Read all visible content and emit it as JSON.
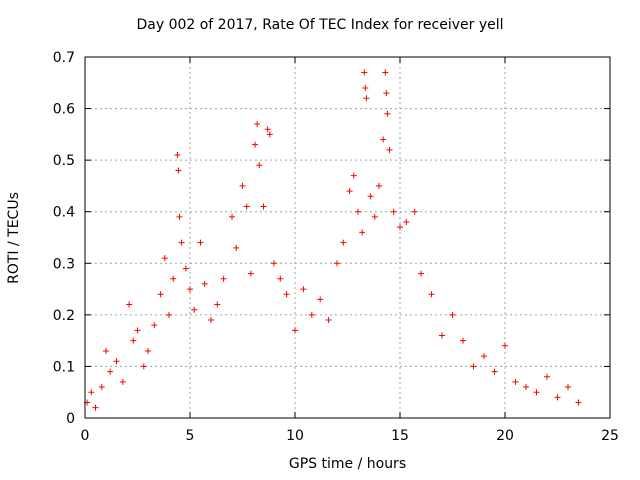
{
  "chart_data": {
    "type": "scatter",
    "title": "Day 002 of 2017, Rate Of TEC Index for receiver yell",
    "xlabel": "GPS time / hours",
    "ylabel": "ROTI / TECUs",
    "xlim": [
      0,
      25
    ],
    "ylim": [
      0,
      0.7
    ],
    "xticks": [
      0,
      5,
      10,
      15,
      20,
      25
    ],
    "yticks": [
      0,
      0.1,
      0.2,
      0.3,
      0.4,
      0.5,
      0.6,
      0.7
    ],
    "xtick_labels": [
      "0",
      "5",
      "10",
      "15",
      "20",
      "25"
    ],
    "ytick_labels": [
      "0",
      "0.1",
      "0.2",
      "0.3",
      "0.4",
      "0.5",
      "0.6",
      "0.7"
    ],
    "grid": true,
    "marker": "+",
    "color": "#ff0000",
    "series": [
      {
        "points": [
          [
            0.1,
            0.03
          ],
          [
            0.3,
            0.05
          ],
          [
            0.5,
            0.02
          ],
          [
            0.8,
            0.06
          ],
          [
            1.0,
            0.13
          ],
          [
            1.2,
            0.09
          ],
          [
            1.5,
            0.11
          ],
          [
            1.8,
            0.07
          ],
          [
            2.1,
            0.22
          ],
          [
            2.3,
            0.15
          ],
          [
            2.5,
            0.17
          ],
          [
            2.8,
            0.1
          ],
          [
            3.0,
            0.13
          ],
          [
            3.3,
            0.18
          ],
          [
            3.6,
            0.24
          ],
          [
            3.8,
            0.31
          ],
          [
            4.0,
            0.2
          ],
          [
            4.2,
            0.27
          ],
          [
            4.4,
            0.51
          ],
          [
            4.45,
            0.48
          ],
          [
            4.5,
            0.39
          ],
          [
            4.6,
            0.34
          ],
          [
            4.8,
            0.29
          ],
          [
            5.0,
            0.25
          ],
          [
            5.2,
            0.21
          ],
          [
            5.5,
            0.34
          ],
          [
            5.7,
            0.26
          ],
          [
            6.0,
            0.19
          ],
          [
            6.3,
            0.22
          ],
          [
            6.6,
            0.27
          ],
          [
            7.0,
            0.39
          ],
          [
            7.2,
            0.33
          ],
          [
            7.5,
            0.45
          ],
          [
            7.7,
            0.41
          ],
          [
            7.9,
            0.28
          ],
          [
            8.1,
            0.53
          ],
          [
            8.2,
            0.57
          ],
          [
            8.3,
            0.49
          ],
          [
            8.5,
            0.41
          ],
          [
            8.7,
            0.56
          ],
          [
            8.8,
            0.55
          ],
          [
            9.0,
            0.3
          ],
          [
            9.3,
            0.27
          ],
          [
            9.6,
            0.24
          ],
          [
            10.0,
            0.17
          ],
          [
            10.4,
            0.25
          ],
          [
            10.8,
            0.2
          ],
          [
            11.2,
            0.23
          ],
          [
            11.6,
            0.19
          ],
          [
            12.0,
            0.3
          ],
          [
            12.3,
            0.34
          ],
          [
            12.6,
            0.44
          ],
          [
            12.8,
            0.47
          ],
          [
            13.0,
            0.4
          ],
          [
            13.2,
            0.36
          ],
          [
            13.3,
            0.67
          ],
          [
            13.35,
            0.64
          ],
          [
            13.4,
            0.62
          ],
          [
            13.6,
            0.43
          ],
          [
            13.8,
            0.39
          ],
          [
            14.0,
            0.45
          ],
          [
            14.2,
            0.54
          ],
          [
            14.3,
            0.67
          ],
          [
            14.35,
            0.63
          ],
          [
            14.4,
            0.59
          ],
          [
            14.5,
            0.52
          ],
          [
            14.7,
            0.4
          ],
          [
            15.0,
            0.37
          ],
          [
            15.3,
            0.38
          ],
          [
            15.7,
            0.4
          ],
          [
            16.0,
            0.28
          ],
          [
            16.5,
            0.24
          ],
          [
            17.0,
            0.16
          ],
          [
            17.5,
            0.2
          ],
          [
            18.0,
            0.15
          ],
          [
            18.5,
            0.1
          ],
          [
            19.0,
            0.12
          ],
          [
            19.5,
            0.09
          ],
          [
            20.0,
            0.14
          ],
          [
            20.5,
            0.07
          ],
          [
            21.0,
            0.06
          ],
          [
            21.5,
            0.05
          ],
          [
            22.0,
            0.08
          ],
          [
            22.5,
            0.04
          ],
          [
            23.0,
            0.06
          ],
          [
            23.5,
            0.03
          ]
        ]
      }
    ]
  }
}
